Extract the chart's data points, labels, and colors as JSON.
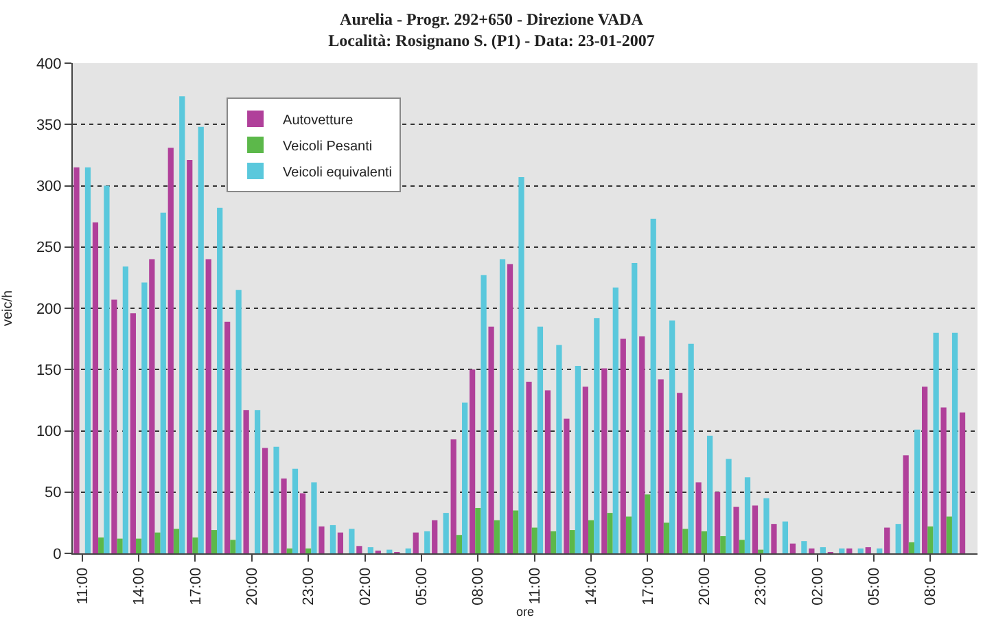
{
  "chart_data": {
    "type": "bar",
    "title": "Aurelia - Progr. 292+650 - Direzione VADA",
    "subtitle": "Località: Rosignano S. (P1) - Data: 23-01-2007",
    "xlabel": "ore",
    "ylabel": "veic/h",
    "categories": [
      "11:00",
      null,
      null,
      "14:00",
      null,
      null,
      "17:00",
      null,
      null,
      "20:00",
      null,
      null,
      "23:00",
      null,
      null,
      "02:00",
      null,
      null,
      "05:00",
      null,
      null,
      "08:00",
      null,
      null,
      "11:00",
      null,
      null,
      "14:00",
      null,
      null,
      "17:00",
      null,
      null,
      "20:00",
      null,
      null,
      "23:00",
      null,
      null,
      "02:00",
      null,
      null,
      "05:00",
      null,
      null,
      "08:00",
      null,
      null
    ],
    "series": [
      {
        "name": "Autovetture",
        "color": "#b0409a",
        "values": [
          315,
          270,
          207,
          196,
          240,
          331,
          321,
          240,
          189,
          117,
          86,
          61,
          49,
          22,
          17,
          6,
          2,
          1,
          17,
          27,
          93,
          150,
          185,
          236,
          140,
          133,
          110,
          136,
          151,
          175,
          177,
          142,
          131,
          58,
          50,
          38,
          39,
          24,
          8,
          4,
          1,
          4,
          5,
          21,
          80,
          136,
          119,
          115
        ]
      },
      {
        "name": "Veicoli Pesanti",
        "color": "#5cb84a",
        "values": [
          0,
          13,
          12,
          12,
          17,
          20,
          13,
          19,
          11,
          0,
          0,
          4,
          4,
          0,
          0,
          0,
          0,
          0,
          0,
          0,
          15,
          37,
          27,
          35,
          21,
          18,
          19,
          27,
          33,
          30,
          48,
          25,
          20,
          18,
          14,
          11,
          3,
          0,
          0,
          0,
          0,
          0,
          0,
          0,
          9,
          22,
          30,
          null
        ]
      },
      {
        "name": "Veicoli equivalenti",
        "color": "#5ac8dc",
        "values": [
          315,
          300,
          234,
          221,
          278,
          373,
          348,
          282,
          215,
          117,
          87,
          69,
          58,
          23,
          20,
          5,
          3,
          4,
          18,
          33,
          123,
          227,
          240,
          307,
          185,
          170,
          153,
          192,
          217,
          237,
          273,
          190,
          171,
          96,
          77,
          62,
          45,
          26,
          10,
          5,
          4,
          4,
          4,
          24,
          101,
          180,
          180,
          null
        ]
      }
    ],
    "ylim": [
      0,
      400
    ],
    "yticks": [
      0,
      50,
      100,
      150,
      200,
      250,
      300,
      350,
      400
    ],
    "grid": "y",
    "legend": "top left"
  }
}
